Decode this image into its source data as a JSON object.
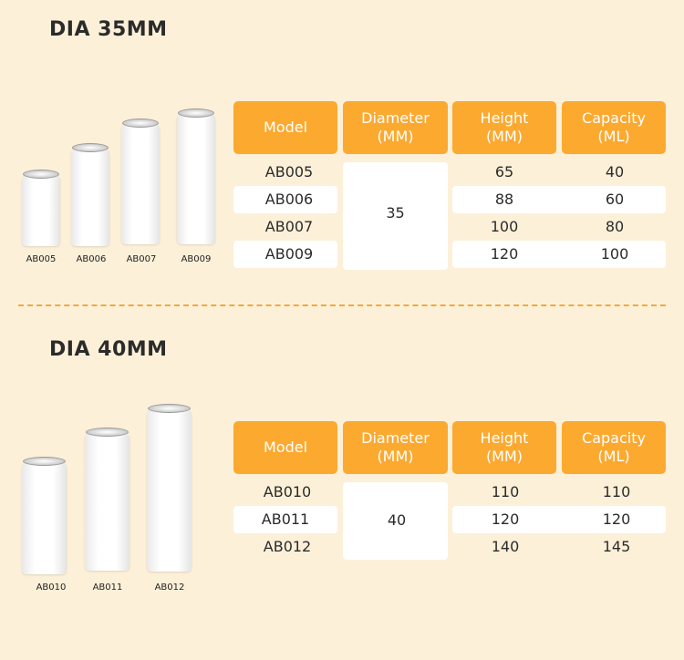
{
  "sections": [
    {
      "title": "DIA 35MM",
      "headers": {
        "model": "Model",
        "diameter": [
          "Diameter",
          "(MM)"
        ],
        "height": [
          "Height",
          "(MM)"
        ],
        "capacity": [
          "Capacity",
          "(ML)"
        ]
      },
      "diameter_value": "35",
      "rows": [
        {
          "model": "AB005",
          "height": "65",
          "capacity": "40"
        },
        {
          "model": "AB006",
          "height": "88",
          "capacity": "60"
        },
        {
          "model": "AB007",
          "height": "100",
          "capacity": "80"
        },
        {
          "model": "AB009",
          "height": "120",
          "capacity": "100"
        }
      ],
      "can_labels": [
        "AB005",
        "AB006",
        "AB007",
        "AB009"
      ]
    },
    {
      "title": "DIA 40MM",
      "headers": {
        "model": "Model",
        "diameter": [
          "Diameter",
          "(MM)"
        ],
        "height": [
          "Height",
          "(MM)"
        ],
        "capacity": [
          "Capacity",
          "(ML)"
        ]
      },
      "diameter_value": "40",
      "rows": [
        {
          "model": "AB010",
          "height": "110",
          "capacity": "110"
        },
        {
          "model": "AB011",
          "height": "120",
          "capacity": "120"
        },
        {
          "model": "AB012",
          "height": "140",
          "capacity": "145"
        }
      ],
      "can_labels": [
        "AB010",
        "AB011",
        "AB012"
      ]
    }
  ],
  "colors": {
    "background": "#fdf0d8",
    "header": "#fca930",
    "divider": "#f2a93b"
  }
}
